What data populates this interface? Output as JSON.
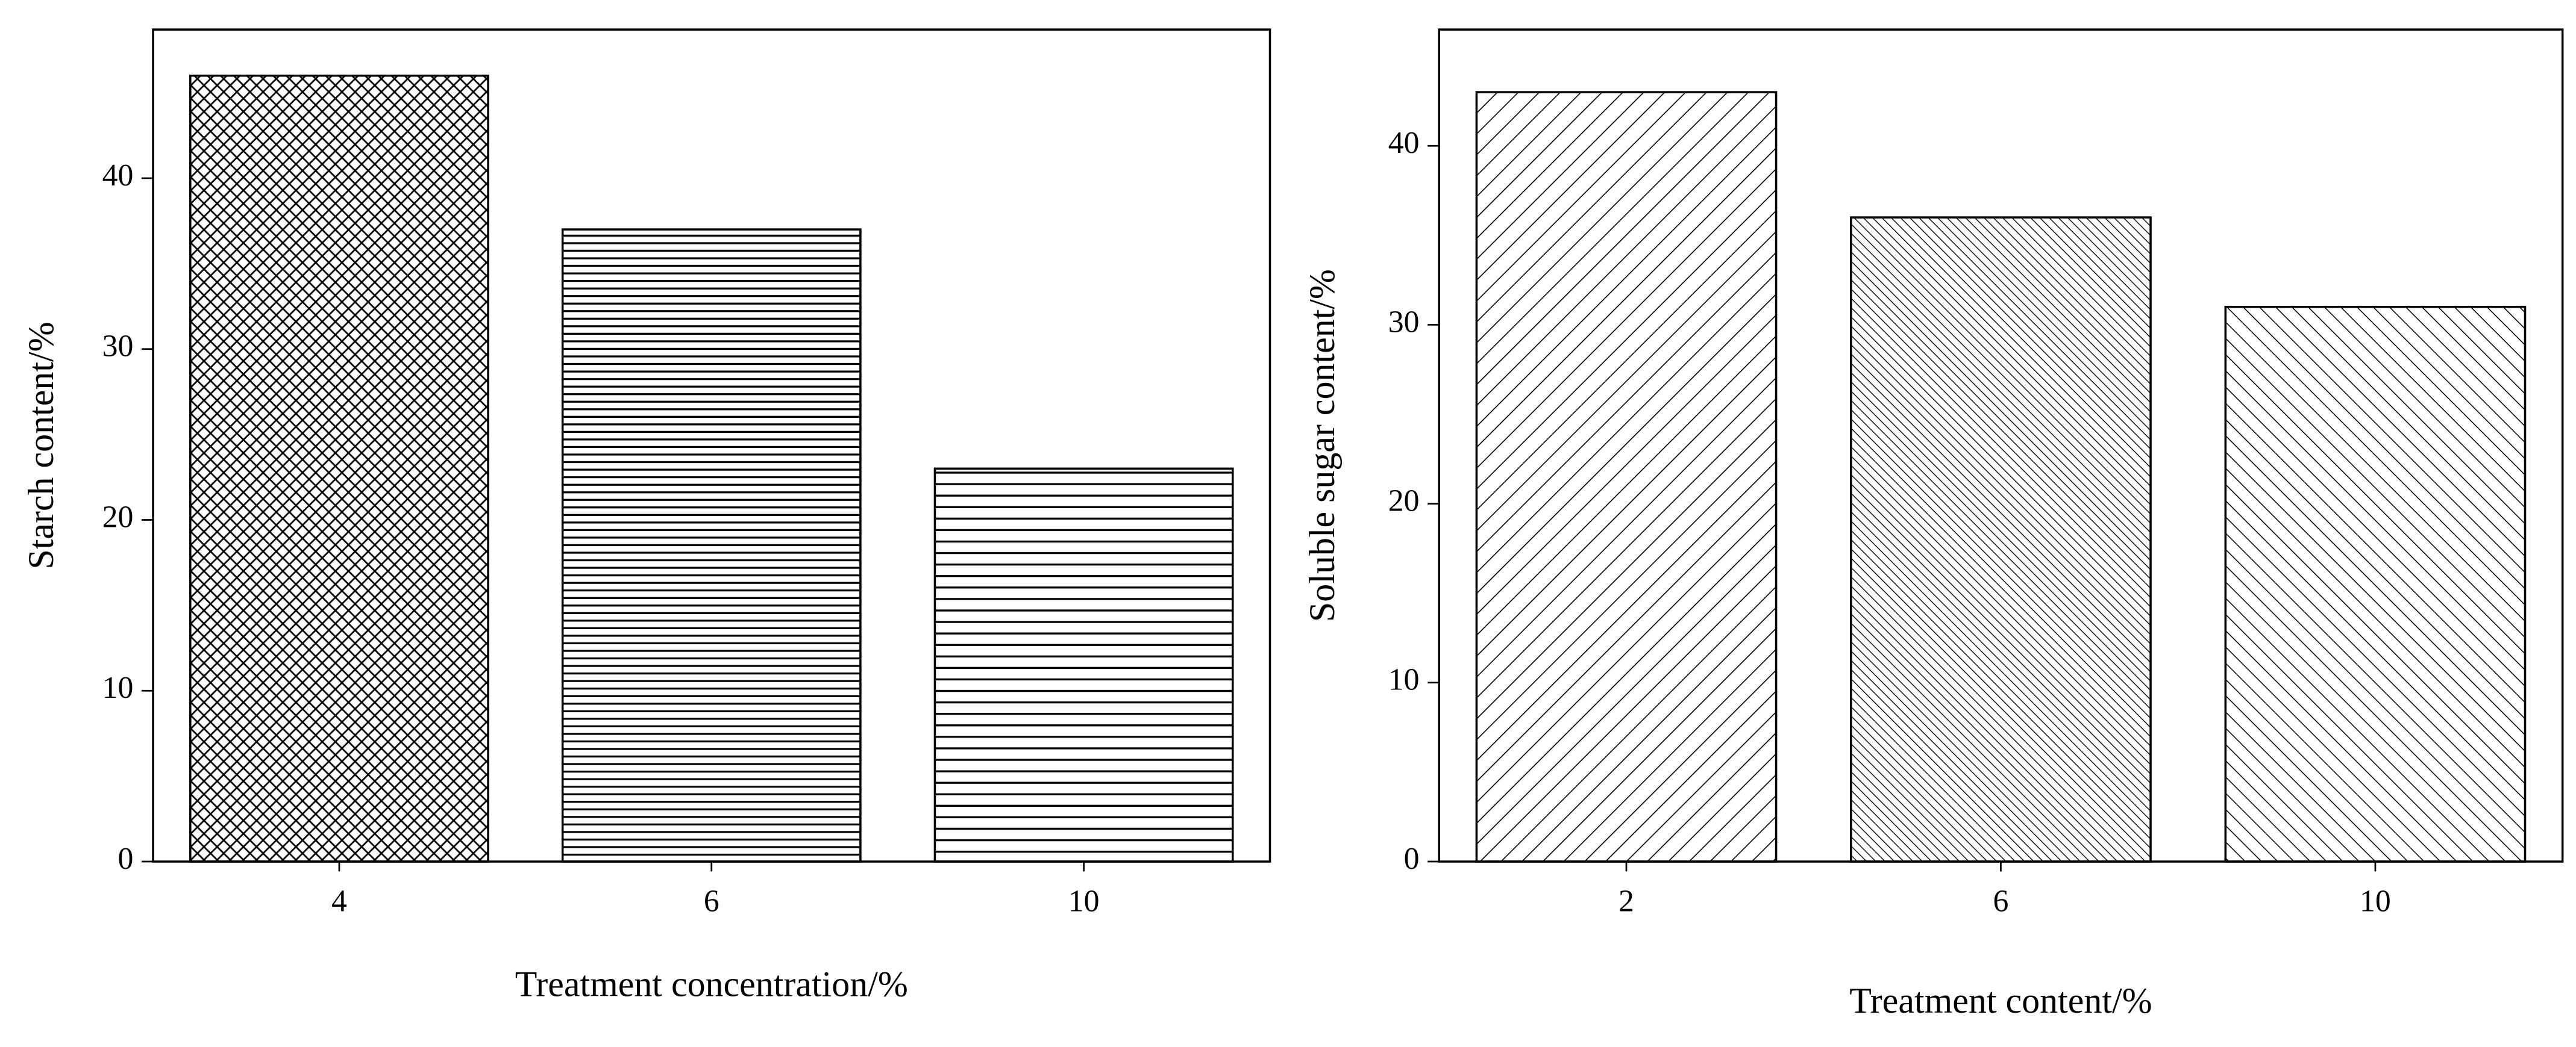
{
  "chart_data": [
    {
      "type": "bar",
      "x_label": "Treatment concentration/%",
      "y_label": "Starch content/%",
      "categories": [
        "4",
        "6",
        "10"
      ],
      "values": [
        46,
        37,
        23
      ],
      "hatch": [
        "crosshatch",
        "horizontal-dense",
        "horizontal"
      ],
      "color": "#000000",
      "ylim": [
        0,
        48.7
      ],
      "yticks": [
        0,
        10,
        20,
        30,
        40
      ]
    },
    {
      "type": "bar",
      "x_label": "Treatment content/%",
      "y_label": "Soluble sugar content/%",
      "categories": [
        "2",
        "6",
        "10"
      ],
      "values": [
        43,
        36,
        31
      ],
      "hatch": [
        "diagonal-up",
        "diagonal-down-dense",
        "diagonal-down"
      ],
      "color": "#000000",
      "ylim": [
        0,
        46.5
      ],
      "yticks": [
        0,
        10,
        20,
        30,
        40
      ]
    }
  ]
}
